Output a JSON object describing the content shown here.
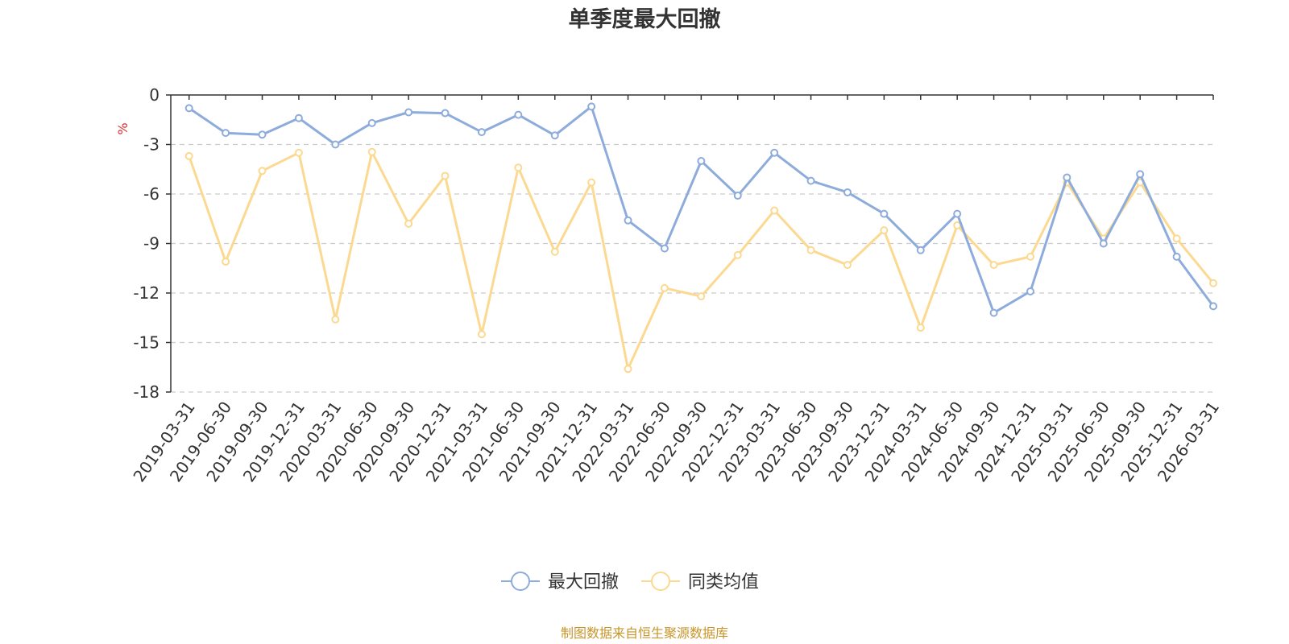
{
  "chart_data": {
    "type": "line",
    "title": "单季度最大回撤",
    "ylabel": "%",
    "ylim": [
      -18,
      0
    ],
    "yticks": [
      0,
      -3,
      -6,
      -9,
      -12,
      -15,
      -18
    ],
    "grid": true,
    "legend_position": "bottom",
    "categories": [
      "2019-03-31",
      "2019-06-30",
      "2019-09-30",
      "2019-12-31",
      "2020-03-31",
      "2020-06-30",
      "2020-09-30",
      "2020-12-31",
      "2021-03-31",
      "2021-06-30",
      "2021-09-30",
      "2021-12-31",
      "2022-03-31",
      "2022-06-30",
      "2022-09-30",
      "2022-12-31",
      "2023-03-31",
      "2023-06-30",
      "2023-09-30",
      "2023-12-31",
      "2024-03-31",
      "2024-06-30",
      "2024-09-30",
      "2024-12-31",
      "2025-03-31",
      "2025-06-30",
      "2025-09-30",
      "2025-12-31",
      "2026-03-31"
    ],
    "series": [
      {
        "name": "最大回撤",
        "color": "#8eacdb",
        "values": [
          -0.8,
          -2.3,
          -2.4,
          -1.4,
          -3.0,
          -1.7,
          -1.05,
          -1.1,
          -2.25,
          -1.2,
          -2.45,
          -0.7,
          -7.6,
          -9.3,
          -4.0,
          -6.1,
          -3.5,
          -5.2,
          -5.9,
          -7.2,
          -9.4,
          -7.2,
          -13.2,
          -11.9,
          -5.0,
          -9.0,
          -4.8,
          -9.8,
          -12.8
        ]
      },
      {
        "name": "同类均值",
        "color": "#fcd991",
        "values": [
          -3.7,
          -10.1,
          -4.6,
          -3.5,
          -13.6,
          -3.45,
          -7.8,
          -4.9,
          -14.5,
          -4.4,
          -9.5,
          -5.3,
          -16.6,
          -11.7,
          -12.2,
          -9.7,
          -7.0,
          -9.4,
          -10.3,
          -8.2,
          -14.1,
          -7.9,
          -10.3,
          -9.8,
          -5.3,
          -8.7,
          -5.3,
          -8.7,
          -11.4
        ]
      }
    ]
  },
  "legend": {
    "items": [
      {
        "label": "最大回撤",
        "color": "#8eacdb"
      },
      {
        "label": "同类均值",
        "color": "#fcd991"
      }
    ]
  },
  "source_note": "制图数据来自恒生聚源数据库",
  "colors": {
    "axis": "#333333",
    "grid": "#cccccc",
    "unit": "#e0292d",
    "source": "#c8952a"
  }
}
